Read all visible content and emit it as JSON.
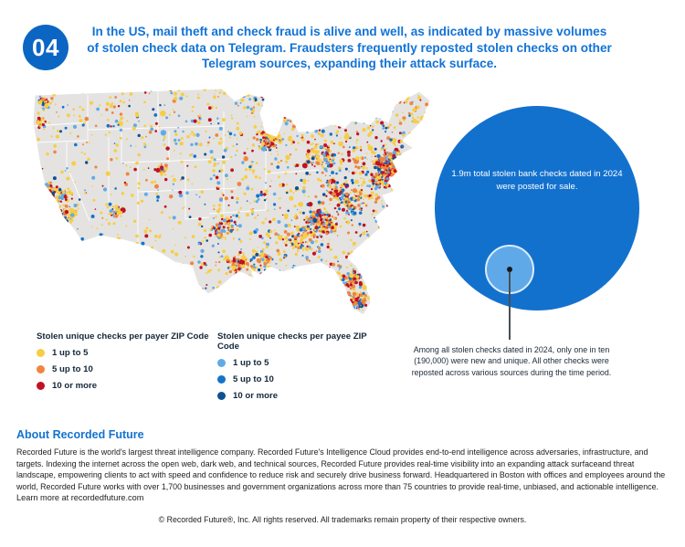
{
  "header": {
    "badge": "04",
    "title": "In the US, mail theft and check fraud is alive and well, as indicated by massive volumes of stolen check data on Telegram. Fraudsters frequently reposted stolen checks on other Telegram sources, expanding their attack surface."
  },
  "colors": {
    "title_blue": "#1273D6",
    "badge_blue": "#0B66C3",
    "heading_blue": "#1373D0",
    "big_circle_blue": "#1371CE",
    "small_circle_blue": "#5FA9E9",
    "map_base": "#E4E3E1",
    "map_state_border": "#FFFFFF"
  },
  "map_legends": [
    {
      "title": "Stolen unique checks per payer ZIP Code",
      "items": [
        {
          "label": "1 up to 5",
          "color": "#F7CD45"
        },
        {
          "label": "5 up to 10",
          "color": "#F0853D"
        },
        {
          "label": "10 or more",
          "color": "#C11027"
        }
      ]
    },
    {
      "title": "Stolen unique checks per payee ZIP Code",
      "items": [
        {
          "label": "1 up to 5",
          "color": "#61AAE8"
        },
        {
          "label": "5 up to 10",
          "color": "#1474C9"
        },
        {
          "label": "10 or more",
          "color": "#0D5193"
        }
      ]
    }
  ],
  "chart_data": [
    {
      "type": "heatmap",
      "subtype": "choropleth-zip-map",
      "region": "contiguous United States",
      "title": "Stolen unique checks per ZIP Code",
      "series": [
        {
          "name": "Stolen unique checks per payer ZIP Code",
          "bins": [
            "1 up to 5",
            "5 up to 10",
            "10 or more"
          ],
          "bin_colors": [
            "#F7CD45",
            "#F0853D",
            "#C11027"
          ]
        },
        {
          "name": "Stolen unique checks per payee ZIP Code",
          "bins": [
            "1 up to 5",
            "5 up to 10",
            "10 or more"
          ],
          "bin_colors": [
            "#61AAE8",
            "#1474C9",
            "#0D5193"
          ]
        }
      ],
      "notes": "ZIP-level density speckle map; heaviest red concentrations along the Northeast corridor, Southeast around Atlanta, Florida, Texas metros, Chicago, and coastal California; sparse gray interior in the Mountain West and Plains"
    },
    {
      "type": "bubble",
      "bubbles": [
        {
          "label": "Total stolen bank checks dated in 2024 posted for sale",
          "display": "1.9m",
          "value": 1900000,
          "color": "#1371CE"
        },
        {
          "label": "New and unique checks (one in ten)",
          "display": "190,000",
          "value": 190000,
          "color": "#5FA9E9"
        }
      ],
      "annotation": "Among all stolen checks dated in 2024, only one in ten (190,000) were new and unique. All other checks were reposted across various sources during the time period."
    }
  ],
  "bubble": {
    "big_label": "1.9m total stolen bank checks dated in 2024 were posted for sale.",
    "annotation": "Among all stolen checks dated in 2024, only one in ten (190,000) were new and unique. All other checks were reposted across various sources during the time period."
  },
  "about": {
    "heading": "About Recorded Future",
    "body": "Recorded Future is the world's largest threat intelligence company. Recorded Future's Intelligence Cloud provides end-to-end intelligence across adversaries, infrastructure, and targets. Indexing the internet across the open web, dark web, and technical sources, Recorded Future provides real-time visibility into an expanding attack surfaceand threat landscape, empowering clients to act with speed and confidence to reduce risk and securely drive business forward. Headquartered in Boston with offices and employees around the world, Recorded Future works with over 1,700 businesses and government organizations across more than 75 countries to provide real-time, unbiased, and actionable intelligence.",
    "learn_more": "Learn more at recordedfuture.com"
  },
  "footer": {
    "text": "© Recorded Future®, Inc. All rights reserved. All trademarks remain property of their respective owners."
  }
}
